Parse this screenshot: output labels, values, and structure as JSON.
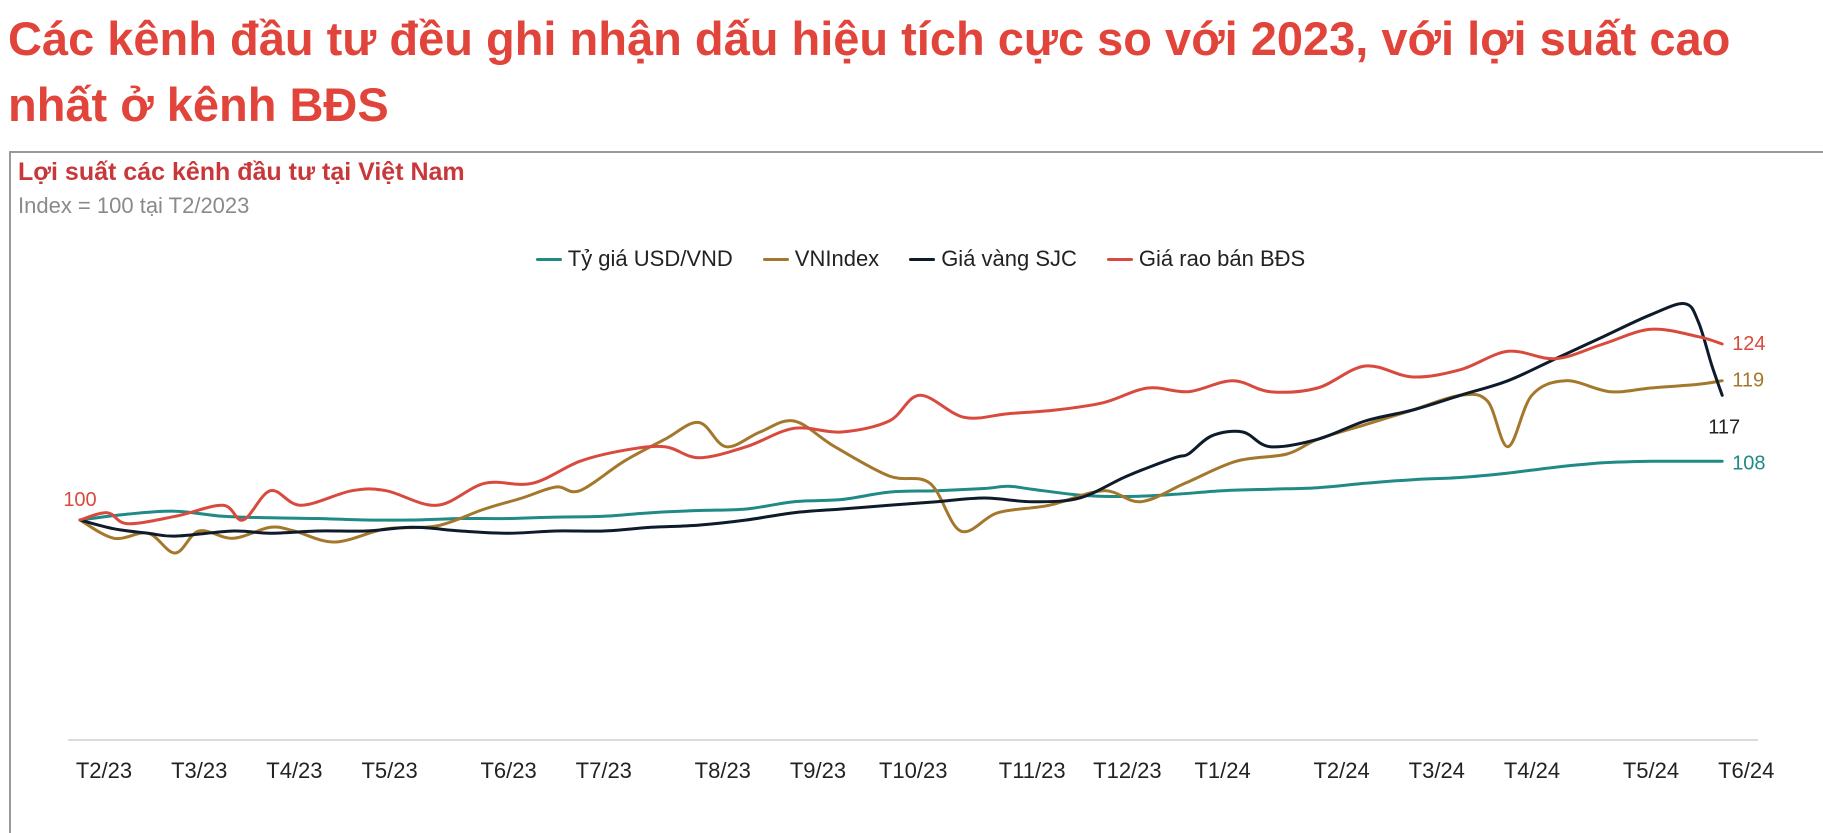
{
  "headline": "Các kênh đầu tư đều ghi nhận dấu hiệu tích cực so với 2023, với lợi suất cao nhất ở kênh BĐS",
  "chart_data": {
    "type": "line",
    "title": "Lợi suất các kênh đầu tư tại Việt Nam",
    "subtitle": "Index = 100 tại T2/2023",
    "xlabel": "",
    "ylabel": "",
    "legend_position": "top-center",
    "grid": false,
    "ylim": [
      70,
      130
    ],
    "x_ticks": [
      {
        "label": "T2/23",
        "day": 0
      },
      {
        "label": "T3/23",
        "day": 28
      },
      {
        "label": "T4/23",
        "day": 56
      },
      {
        "label": "T5/23",
        "day": 84
      },
      {
        "label": "T6/23",
        "day": 119
      },
      {
        "label": "T7/23",
        "day": 147
      },
      {
        "label": "T8/23",
        "day": 182
      },
      {
        "label": "T9/23",
        "day": 210
      },
      {
        "label": "T10/23",
        "day": 238
      },
      {
        "label": "T11/23",
        "day": 273
      },
      {
        "label": "T12/23",
        "day": 301
      },
      {
        "label": "T1/24",
        "day": 329
      },
      {
        "label": "T2/24",
        "day": 364
      },
      {
        "label": "T3/24",
        "day": 392
      },
      {
        "label": "T4/24",
        "day": 420
      },
      {
        "label": "T5/24",
        "day": 455
      },
      {
        "label": "T6/24",
        "day": 483
      }
    ],
    "x_max": 490,
    "start_label": "100",
    "series": [
      {
        "name": "Tỷ giá USD/VND",
        "color": "#1f8a86",
        "end_label": "108",
        "points": [
          [
            0,
            100
          ],
          [
            14,
            100.8
          ],
          [
            28,
            101.2
          ],
          [
            42,
            100.5
          ],
          [
            56,
            100.3
          ],
          [
            70,
            100.2
          ],
          [
            84,
            100
          ],
          [
            98,
            100
          ],
          [
            112,
            100.2
          ],
          [
            126,
            100.2
          ],
          [
            140,
            100.4
          ],
          [
            154,
            100.5
          ],
          [
            168,
            101
          ],
          [
            182,
            101.3
          ],
          [
            196,
            101.5
          ],
          [
            210,
            102.5
          ],
          [
            224,
            102.8
          ],
          [
            238,
            103.8
          ],
          [
            252,
            104
          ],
          [
            266,
            104.3
          ],
          [
            273,
            104.6
          ],
          [
            280,
            104.2
          ],
          [
            294,
            103.4
          ],
          [
            308,
            103.2
          ],
          [
            322,
            103.5
          ],
          [
            336,
            104
          ],
          [
            350,
            104.2
          ],
          [
            364,
            104.4
          ],
          [
            378,
            105
          ],
          [
            392,
            105.5
          ],
          [
            406,
            105.8
          ],
          [
            420,
            106.4
          ],
          [
            434,
            107.2
          ],
          [
            448,
            107.8
          ],
          [
            462,
            108
          ],
          [
            476,
            108
          ],
          [
            483,
            108
          ]
        ]
      },
      {
        "name": "VNIndex",
        "color": "#a4782c",
        "end_label": "119",
        "points": [
          [
            0,
            100
          ],
          [
            10,
            97.5
          ],
          [
            20,
            98.2
          ],
          [
            28,
            95.5
          ],
          [
            35,
            98.5
          ],
          [
            45,
            97.5
          ],
          [
            56,
            99
          ],
          [
            63,
            98.5
          ],
          [
            75,
            97
          ],
          [
            90,
            98.8
          ],
          [
            105,
            99.2
          ],
          [
            119,
            101.5
          ],
          [
            130,
            103
          ],
          [
            140,
            104.5
          ],
          [
            147,
            104
          ],
          [
            160,
            108
          ],
          [
            172,
            111
          ],
          [
            182,
            113.3
          ],
          [
            190,
            110
          ],
          [
            200,
            112
          ],
          [
            210,
            113.5
          ],
          [
            222,
            110
          ],
          [
            238,
            106
          ],
          [
            250,
            105
          ],
          [
            259,
            98.5
          ],
          [
            270,
            101
          ],
          [
            285,
            102
          ],
          [
            301,
            104
          ],
          [
            312,
            102.5
          ],
          [
            325,
            105
          ],
          [
            340,
            108
          ],
          [
            355,
            109
          ],
          [
            364,
            111
          ],
          [
            378,
            113
          ],
          [
            392,
            115
          ],
          [
            406,
            117
          ],
          [
            414,
            116.2
          ],
          [
            420,
            110
          ],
          [
            427,
            117
          ],
          [
            437,
            119
          ],
          [
            450,
            117.5
          ],
          [
            462,
            118
          ],
          [
            476,
            118.5
          ],
          [
            483,
            119
          ]
        ]
      },
      {
        "name": "Giá vàng SJC",
        "color": "#0d1b2a",
        "end_label": "117",
        "points": [
          [
            0,
            100
          ],
          [
            10,
            98.8
          ],
          [
            20,
            98.2
          ],
          [
            28,
            97.8
          ],
          [
            45,
            98.5
          ],
          [
            56,
            98.2
          ],
          [
            70,
            98.5
          ],
          [
            84,
            98.5
          ],
          [
            98,
            99
          ],
          [
            112,
            98.5
          ],
          [
            126,
            98.2
          ],
          [
            140,
            98.5
          ],
          [
            154,
            98.5
          ],
          [
            168,
            99
          ],
          [
            182,
            99.3
          ],
          [
            196,
            100
          ],
          [
            210,
            101
          ],
          [
            224,
            101.5
          ],
          [
            238,
            102
          ],
          [
            252,
            102.5
          ],
          [
            266,
            103
          ],
          [
            280,
            102.5
          ],
          [
            294,
            103
          ],
          [
            308,
            106
          ],
          [
            322,
            108.5
          ],
          [
            326,
            109
          ],
          [
            333,
            111.5
          ],
          [
            342,
            112
          ],
          [
            350,
            110
          ],
          [
            364,
            111
          ],
          [
            378,
            113.5
          ],
          [
            392,
            115
          ],
          [
            406,
            117
          ],
          [
            420,
            119
          ],
          [
            434,
            122
          ],
          [
            448,
            125
          ],
          [
            462,
            128
          ],
          [
            472,
            129.5
          ],
          [
            476,
            127
          ],
          [
            480,
            121
          ],
          [
            483,
            117
          ]
        ]
      },
      {
        "name": "Giá rao bán BĐS",
        "color": "#d94a3e",
        "end_label": "124",
        "points": [
          [
            0,
            100
          ],
          [
            8,
            101
          ],
          [
            14,
            99.5
          ],
          [
            28,
            100.5
          ],
          [
            42,
            102
          ],
          [
            48,
            100
          ],
          [
            56,
            104
          ],
          [
            65,
            102
          ],
          [
            80,
            104
          ],
          [
            90,
            104
          ],
          [
            105,
            102
          ],
          [
            119,
            105
          ],
          [
            133,
            105
          ],
          [
            147,
            108
          ],
          [
            160,
            109.5
          ],
          [
            172,
            110
          ],
          [
            182,
            108.5
          ],
          [
            196,
            110
          ],
          [
            210,
            112.5
          ],
          [
            224,
            112
          ],
          [
            238,
            113.5
          ],
          [
            247,
            117
          ],
          [
            260,
            114
          ],
          [
            273,
            114.5
          ],
          [
            287,
            115
          ],
          [
            301,
            116
          ],
          [
            314,
            118
          ],
          [
            326,
            117.5
          ],
          [
            339,
            119
          ],
          [
            350,
            117.5
          ],
          [
            364,
            118
          ],
          [
            378,
            121
          ],
          [
            392,
            119.5
          ],
          [
            406,
            120.5
          ],
          [
            420,
            123
          ],
          [
            434,
            122
          ],
          [
            448,
            124
          ],
          [
            462,
            126
          ],
          [
            476,
            125
          ],
          [
            483,
            124
          ]
        ]
      }
    ]
  }
}
